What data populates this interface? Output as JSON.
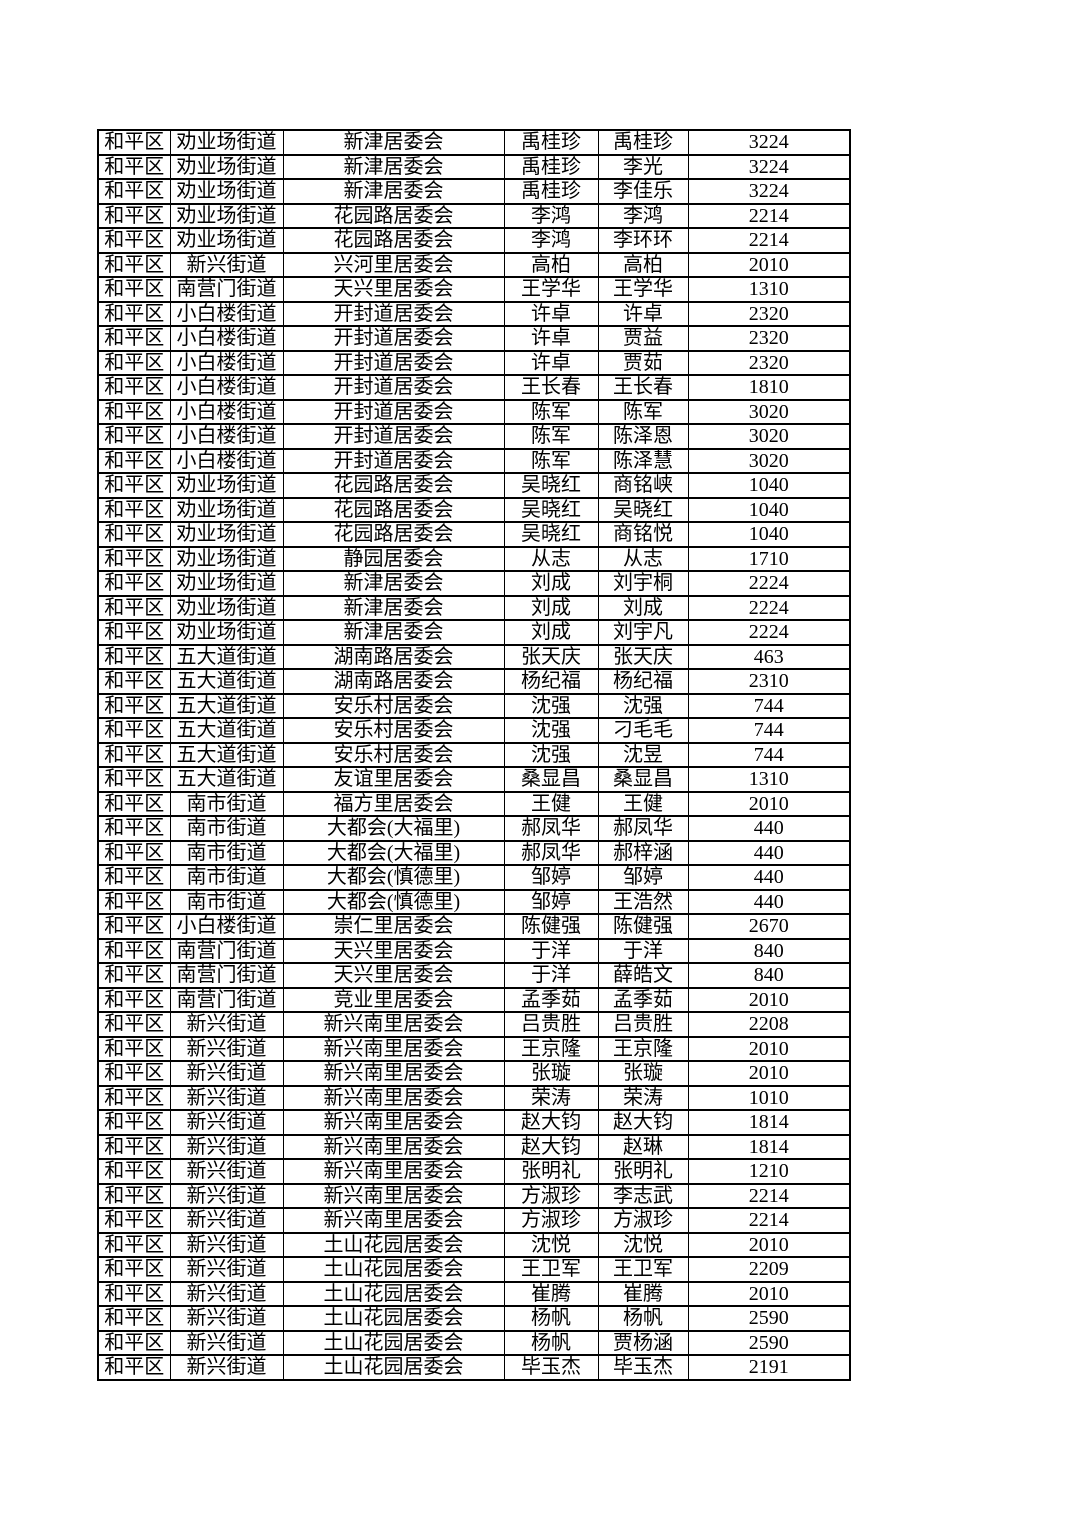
{
  "page": {
    "background_color": "#ffffff",
    "text_color": "#000000",
    "border_color": "#000000"
  },
  "table": {
    "column_keys": [
      "district",
      "street",
      "committee",
      "applicant-name",
      "member-name",
      "number"
    ],
    "rows": [
      [
        "和平区",
        "劝业场街道",
        "新津居委会",
        "禹桂珍",
        "禹桂珍",
        "3224"
      ],
      [
        "和平区",
        "劝业场街道",
        "新津居委会",
        "禹桂珍",
        "李光",
        "3224"
      ],
      [
        "和平区",
        "劝业场街道",
        "新津居委会",
        "禹桂珍",
        "李佳乐",
        "3224"
      ],
      [
        "和平区",
        "劝业场街道",
        "花园路居委会",
        "李鸿",
        "李鸿",
        "2214"
      ],
      [
        "和平区",
        "劝业场街道",
        "花园路居委会",
        "李鸿",
        "李环环",
        "2214"
      ],
      [
        "和平区",
        "新兴街道",
        "兴河里居委会",
        "高柏",
        "高柏",
        "2010"
      ],
      [
        "和平区",
        "南营门街道",
        "天兴里居委会",
        "王学华",
        "王学华",
        "1310"
      ],
      [
        "和平区",
        "小白楼街道",
        "开封道居委会",
        "许卓",
        "许卓",
        "2320"
      ],
      [
        "和平区",
        "小白楼街道",
        "开封道居委会",
        "许卓",
        "贾益",
        "2320"
      ],
      [
        "和平区",
        "小白楼街道",
        "开封道居委会",
        "许卓",
        "贾茹",
        "2320"
      ],
      [
        "和平区",
        "小白楼街道",
        "开封道居委会",
        "王长春",
        "王长春",
        "1810"
      ],
      [
        "和平区",
        "小白楼街道",
        "开封道居委会",
        "陈军",
        "陈军",
        "3020"
      ],
      [
        "和平区",
        "小白楼街道",
        "开封道居委会",
        "陈军",
        "陈泽恩",
        "3020"
      ],
      [
        "和平区",
        "小白楼街道",
        "开封道居委会",
        "陈军",
        "陈泽慧",
        "3020"
      ],
      [
        "和平区",
        "劝业场街道",
        "花园路居委会",
        "吴晓红",
        "商铭峡",
        "1040"
      ],
      [
        "和平区",
        "劝业场街道",
        "花园路居委会",
        "吴晓红",
        "吴晓红",
        "1040"
      ],
      [
        "和平区",
        "劝业场街道",
        "花园路居委会",
        "吴晓红",
        "商铭悦",
        "1040"
      ],
      [
        "和平区",
        "劝业场街道",
        "静园居委会",
        "从志",
        "从志",
        "1710"
      ],
      [
        "和平区",
        "劝业场街道",
        "新津居委会",
        "刘成",
        "刘宇桐",
        "2224"
      ],
      [
        "和平区",
        "劝业场街道",
        "新津居委会",
        "刘成",
        "刘成",
        "2224"
      ],
      [
        "和平区",
        "劝业场街道",
        "新津居委会",
        "刘成",
        "刘宇凡",
        "2224"
      ],
      [
        "和平区",
        "五大道街道",
        "湖南路居委会",
        "张天庆",
        "张天庆",
        "463"
      ],
      [
        "和平区",
        "五大道街道",
        "湖南路居委会",
        "杨纪福",
        "杨纪福",
        "2310"
      ],
      [
        "和平区",
        "五大道街道",
        "安乐村居委会",
        "沈强",
        "沈强",
        "744"
      ],
      [
        "和平区",
        "五大道街道",
        "安乐村居委会",
        "沈强",
        "刁毛毛",
        "744"
      ],
      [
        "和平区",
        "五大道街道",
        "安乐村居委会",
        "沈强",
        "沈昱",
        "744"
      ],
      [
        "和平区",
        "五大道街道",
        "友谊里居委会",
        "桑显昌",
        "桑显昌",
        "1310"
      ],
      [
        "和平区",
        "南市街道",
        "福方里居委会",
        "王健",
        "王健",
        "2010"
      ],
      [
        "和平区",
        "南市街道",
        "大都会(大福里)",
        "郝凤华",
        "郝凤华",
        "440"
      ],
      [
        "和平区",
        "南市街道",
        "大都会(大福里)",
        "郝凤华",
        "郝梓涵",
        "440"
      ],
      [
        "和平区",
        "南市街道",
        "大都会(慎德里)",
        "邹婷",
        "邹婷",
        "440"
      ],
      [
        "和平区",
        "南市街道",
        "大都会(慎德里)",
        "邹婷",
        "王浩然",
        "440"
      ],
      [
        "和平区",
        "小白楼街道",
        "崇仁里居委会",
        "陈健强",
        "陈健强",
        "2670"
      ],
      [
        "和平区",
        "南营门街道",
        "天兴里居委会",
        "于洋",
        "于洋",
        "840"
      ],
      [
        "和平区",
        "南营门街道",
        "天兴里居委会",
        "于洋",
        "薛皓文",
        "840"
      ],
      [
        "和平区",
        "南营门街道",
        "竞业里居委会",
        "孟季茹",
        "孟季茹",
        "2010"
      ],
      [
        "和平区",
        "新兴街道",
        "新兴南里居委会",
        "吕贵胜",
        "吕贵胜",
        "2208"
      ],
      [
        "和平区",
        "新兴街道",
        "新兴南里居委会",
        "王京隆",
        "王京隆",
        "2010"
      ],
      [
        "和平区",
        "新兴街道",
        "新兴南里居委会",
        "张璇",
        "张璇",
        "2010"
      ],
      [
        "和平区",
        "新兴街道",
        "新兴南里居委会",
        "荣涛",
        "荣涛",
        "1010"
      ],
      [
        "和平区",
        "新兴街道",
        "新兴南里居委会",
        "赵大钧",
        "赵大钧",
        "1814"
      ],
      [
        "和平区",
        "新兴街道",
        "新兴南里居委会",
        "赵大钧",
        "赵琳",
        "1814"
      ],
      [
        "和平区",
        "新兴街道",
        "新兴南里居委会",
        "张明礼",
        "张明礼",
        "1210"
      ],
      [
        "和平区",
        "新兴街道",
        "新兴南里居委会",
        "方淑珍",
        "李志武",
        "2214"
      ],
      [
        "和平区",
        "新兴街道",
        "新兴南里居委会",
        "方淑珍",
        "方淑珍",
        "2214"
      ],
      [
        "和平区",
        "新兴街道",
        "土山花园居委会",
        "沈悦",
        "沈悦",
        "2010"
      ],
      [
        "和平区",
        "新兴街道",
        "土山花园居委会",
        "王卫军",
        "王卫军",
        "2209"
      ],
      [
        "和平区",
        "新兴街道",
        "土山花园居委会",
        "崔腾",
        "崔腾",
        "2010"
      ],
      [
        "和平区",
        "新兴街道",
        "土山花园居委会",
        "杨帆",
        "杨帆",
        "2590"
      ],
      [
        "和平区",
        "新兴街道",
        "土山花园居委会",
        "杨帆",
        "贾杨涵",
        "2590"
      ],
      [
        "和平区",
        "新兴街道",
        "土山花园居委会",
        "毕玉杰",
        "毕玉杰",
        "2191"
      ]
    ]
  }
}
